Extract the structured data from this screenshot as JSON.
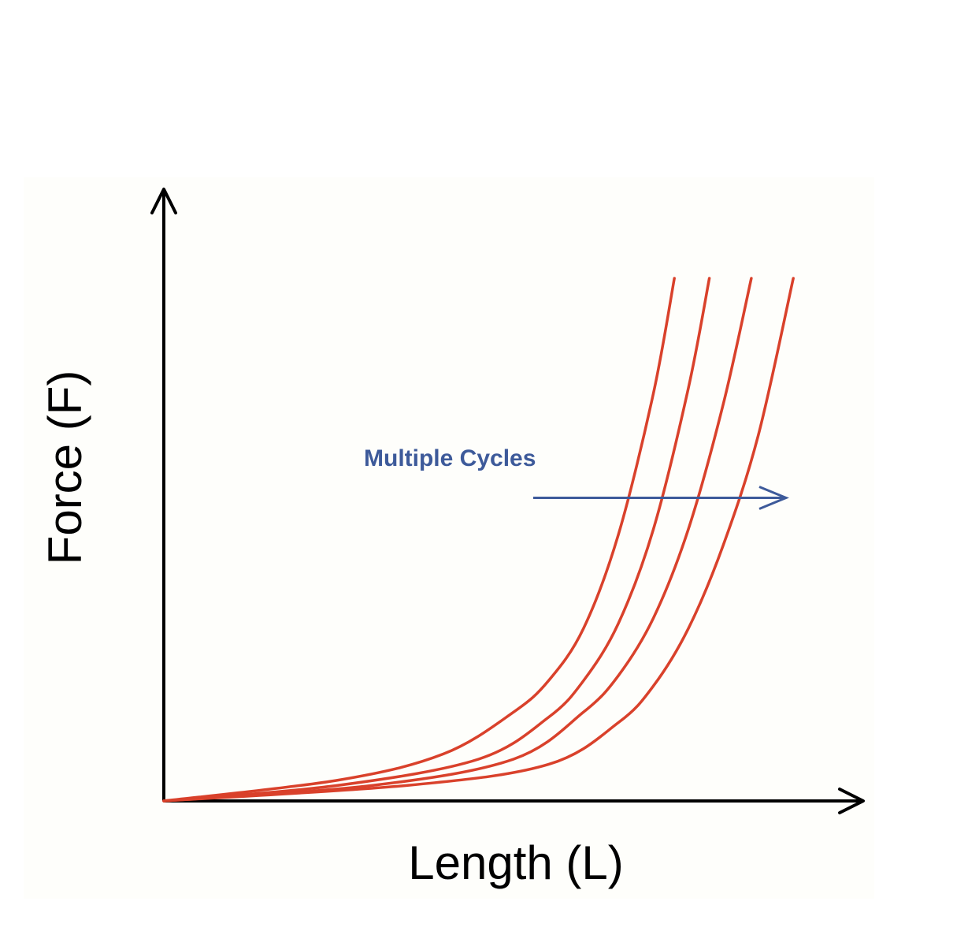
{
  "chart_data": {
    "type": "line",
    "title": "",
    "xlabel": "Length (L)",
    "ylabel": "Force  (F)",
    "xlim": [
      0,
      1
    ],
    "ylim": [
      0,
      1
    ],
    "grid": false,
    "legend": "none",
    "x_ticks": [],
    "y_ticks": [],
    "series": [
      {
        "x": [
          0.0,
          0.25,
          0.4,
          0.5,
          0.55,
          0.6,
          0.65,
          0.7,
          0.73
        ],
        "y": [
          0.0,
          0.04,
          0.09,
          0.17,
          0.23,
          0.33,
          0.51,
          0.78,
          1.0
        ]
      },
      {
        "x": [
          0.0,
          0.25,
          0.45,
          0.55,
          0.6,
          0.65,
          0.7,
          0.75,
          0.78
        ],
        "y": [
          0.0,
          0.03,
          0.08,
          0.16,
          0.23,
          0.34,
          0.52,
          0.79,
          1.0
        ]
      },
      {
        "x": [
          0.0,
          0.3,
          0.5,
          0.6,
          0.65,
          0.7,
          0.75,
          0.8,
          0.84
        ],
        "y": [
          0.0,
          0.03,
          0.08,
          0.17,
          0.24,
          0.35,
          0.52,
          0.76,
          1.0
        ]
      },
      {
        "x": [
          0.0,
          0.35,
          0.55,
          0.65,
          0.7,
          0.75,
          0.8,
          0.85,
          0.9
        ],
        "y": [
          0.0,
          0.03,
          0.07,
          0.15,
          0.22,
          0.33,
          0.49,
          0.7,
          1.0
        ]
      }
    ],
    "annotations": [
      {
        "text": "Multiple Cycles",
        "arrow": "right",
        "arrow_at_y": 0.58
      }
    ],
    "colors": {
      "curves": "#d9412b",
      "annotation": "#3d5a9a",
      "axes": "#000000"
    }
  }
}
